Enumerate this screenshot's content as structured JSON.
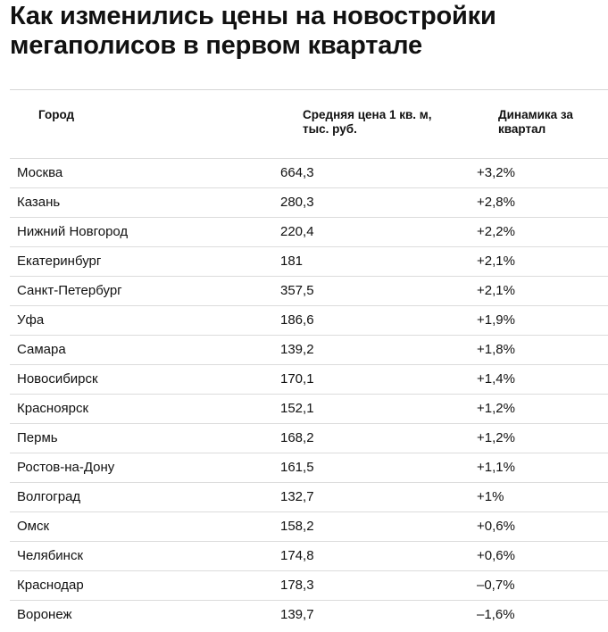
{
  "title": "Как изменились цены на новостройки мегаполисов в первом квартале",
  "table": {
    "headers": {
      "city": "Город",
      "price": "Средняя цена 1 кв. м, тыс. руб.",
      "dynamics": "Динамика за квартал"
    },
    "rows": [
      {
        "city": "Москва",
        "price": "664,3",
        "dynamics": "+3,2%"
      },
      {
        "city": "Казань",
        "price": "280,3",
        "dynamics": "+2,8%"
      },
      {
        "city": "Нижний Новгород",
        "price": "220,4",
        "dynamics": "+2,2%"
      },
      {
        "city": "Екатеринбург",
        "price": "181",
        "dynamics": "+2,1%"
      },
      {
        "city": "Санкт-Петербург",
        "price": "357,5",
        "dynamics": "+2,1%"
      },
      {
        "city": "Уфа",
        "price": "186,6",
        "dynamics": "+1,9%"
      },
      {
        "city": "Самара",
        "price": "139,2",
        "dynamics": "+1,8%"
      },
      {
        "city": "Новосибирск",
        "price": "170,1",
        "dynamics": "+1,4%"
      },
      {
        "city": "Красноярск",
        "price": "152,1",
        "dynamics": "+1,2%"
      },
      {
        "city": "Пермь",
        "price": "168,2",
        "dynamics": "+1,2%"
      },
      {
        "city": "Ростов-на-Дону",
        "price": "161,5",
        "dynamics": "+1,1%"
      },
      {
        "city": "Волгоград",
        "price": "132,7",
        "dynamics": "+1%"
      },
      {
        "city": "Омск",
        "price": "158,2",
        "dynamics": "+0,6%"
      },
      {
        "city": "Челябинск",
        "price": "174,8",
        "dynamics": "+0,6%"
      },
      {
        "city": "Краснодар",
        "price": "178,3",
        "dynamics": "–0,7%"
      },
      {
        "city": "Воронеж",
        "price": "139,7",
        "dynamics": "–1,6%"
      }
    ]
  }
}
